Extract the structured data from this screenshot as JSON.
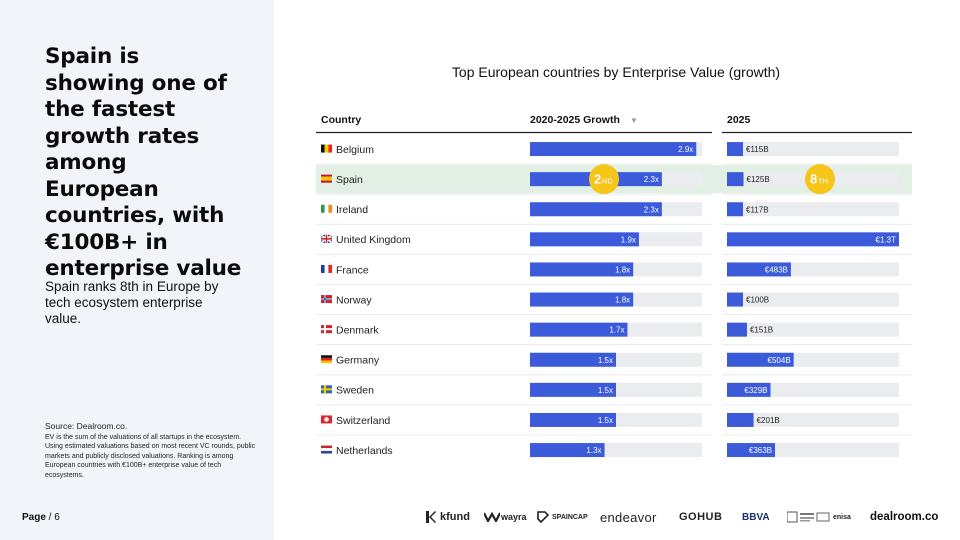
{
  "slide": {
    "headline": "Spain is showing one of the fastest growth rates among European countries, with €100B+ in enterprise value",
    "subtext": "Spain ranks 8th in Europe by tech ecosystem enterprise value.",
    "source_title": "Source:  Dealroom.co.",
    "source_body": "EV is the sum of the valuations of all startups in the ecosystem. Using estimated valuations based on most recent VC rounds, public markets and publicly disclosed valuations. Ranking is among European countries with €100B+ enterprise value of tech ecosystems.",
    "page_label": "Page",
    "page_suffix": " / 6"
  },
  "colors": {
    "bar": "#3b5bdb",
    "track": "#ebecef",
    "highlight_row": "#e2efe5",
    "badge": "#f5c518"
  },
  "chart_data": {
    "type": "table",
    "title": "Top European countries by Enterprise Value (growth)",
    "columns": [
      "Country",
      "2020-2025 Growth",
      "2025"
    ],
    "sort_indicator": "▼",
    "highlight_country": "Spain",
    "badges": [
      {
        "column": "2020-2025 Growth",
        "number": "2",
        "suffix": "ND"
      },
      {
        "column": "2025",
        "number": "8",
        "suffix": "TH"
      }
    ],
    "growth_max": 3.0,
    "ev_max_billion": 1300,
    "rows": [
      {
        "country": "Belgium",
        "flag": "be",
        "growth": 2.9,
        "growth_label": "2.9x",
        "ev_billion": 115,
        "ev_label": "€115B"
      },
      {
        "country": "Spain",
        "flag": "es",
        "growth": 2.3,
        "growth_label": "2.3x",
        "ev_billion": 125,
        "ev_label": "€125B"
      },
      {
        "country": "Ireland",
        "flag": "ie",
        "growth": 2.3,
        "growth_label": "2.3x",
        "ev_billion": 117,
        "ev_label": "€117B"
      },
      {
        "country": "United Kingdom",
        "flag": "gb",
        "growth": 1.9,
        "growth_label": "1.9x",
        "ev_billion": 1300,
        "ev_label": "€1.3T"
      },
      {
        "country": "France",
        "flag": "fr",
        "growth": 1.8,
        "growth_label": "1.8x",
        "ev_billion": 483,
        "ev_label": "€483B"
      },
      {
        "country": "Norway",
        "flag": "no",
        "growth": 1.8,
        "growth_label": "1.8x",
        "ev_billion": 100,
        "ev_label": "€100B"
      },
      {
        "country": "Denmark",
        "flag": "dk",
        "growth": 1.7,
        "growth_label": "1.7x",
        "ev_billion": 151,
        "ev_label": "€151B"
      },
      {
        "country": "Germany",
        "flag": "de",
        "growth": 1.5,
        "growth_label": "1.5x",
        "ev_billion": 504,
        "ev_label": "€504B"
      },
      {
        "country": "Sweden",
        "flag": "se",
        "growth": 1.5,
        "growth_label": "1.5x",
        "ev_billion": 329,
        "ev_label": "€329B"
      },
      {
        "country": "Switzerland",
        "flag": "ch",
        "growth": 1.5,
        "growth_label": "1.5x",
        "ev_billion": 201,
        "ev_label": "€201B"
      },
      {
        "country": "Netherlands",
        "flag": "nl",
        "growth": 1.3,
        "growth_label": "1.3x",
        "ev_billion": 363,
        "ev_label": "€363B"
      }
    ]
  },
  "footer_logos": [
    {
      "name": "kfund-logo",
      "text": "kfund"
    },
    {
      "name": "wayra-logo",
      "text": "wayra"
    },
    {
      "name": "spaincap-logo",
      "text": "SPAINCAP"
    },
    {
      "name": "endeavor-logo",
      "text": "endeavor"
    },
    {
      "name": "gohub-logo",
      "text": "GOHUB"
    },
    {
      "name": "bbva-logo",
      "text": "BBVA"
    },
    {
      "name": "enisa-logo",
      "text": "enisa"
    },
    {
      "name": "dealroom-logo",
      "text": "dealroom.co"
    }
  ]
}
